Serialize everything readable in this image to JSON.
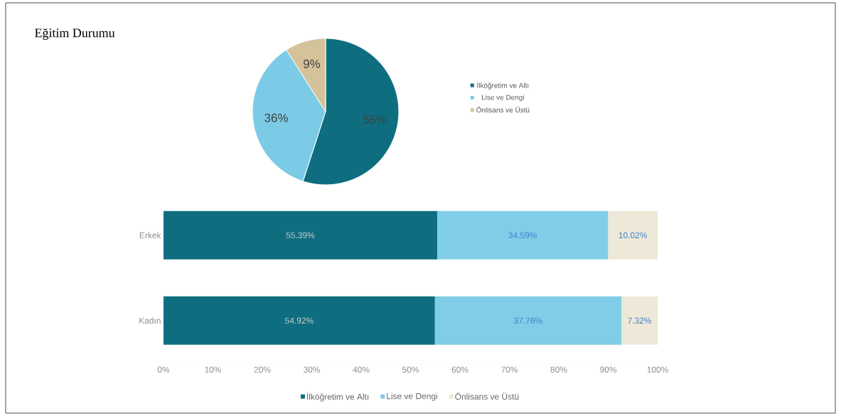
{
  "chart_data": [
    {
      "type": "pie",
      "title": "Eğitim Durumu",
      "categories": [
        "İlköğretim ve Altı",
        "Lise ve Dengi",
        "Önlisans ve Üstü"
      ],
      "values": [
        55,
        36,
        9
      ],
      "colors": [
        "#0e6e80",
        "#7ccbe6",
        "#d4c29a"
      ],
      "value_labels": [
        "55%",
        "36%",
        "9%"
      ],
      "legend": "right"
    },
    {
      "type": "bar",
      "orientation": "horizontal",
      "stacked": true,
      "categories": [
        "Erkek",
        "Kadın"
      ],
      "series": [
        {
          "name": "İlköğretim ve Altı",
          "color": "#0e6e80",
          "values": [
            55.39,
            54.92
          ],
          "value_labels": [
            "55.39%",
            "54.92%"
          ]
        },
        {
          "name": "Lise ve Dengi",
          "color": "#80cde8",
          "values": [
            34.59,
            37.76
          ],
          "value_labels": [
            "34.59%",
            "37.76%"
          ]
        },
        {
          "name": "Önlisans ve Üstü",
          "color": "#eee8d8",
          "values": [
            10.02,
            7.32
          ],
          "value_labels": [
            "10.02%",
            "7.32%"
          ]
        }
      ],
      "xlim": [
        0,
        100
      ],
      "xticks": [
        {
          "value": 0,
          "label": "0%"
        },
        {
          "value": 10,
          "label": "10%"
        },
        {
          "value": 20,
          "label": "20%"
        },
        {
          "value": 30,
          "label": "30%"
        },
        {
          "value": 40,
          "label": "40%"
        },
        {
          "value": 50,
          "label": "50%"
        },
        {
          "value": 60,
          "label": "60%"
        },
        {
          "value": 70,
          "label": "70%"
        },
        {
          "value": 80,
          "label": "80%"
        },
        {
          "value": 90,
          "label": "90%"
        },
        {
          "value": 100,
          "label": "100%"
        }
      ],
      "legend": "bottom"
    }
  ]
}
